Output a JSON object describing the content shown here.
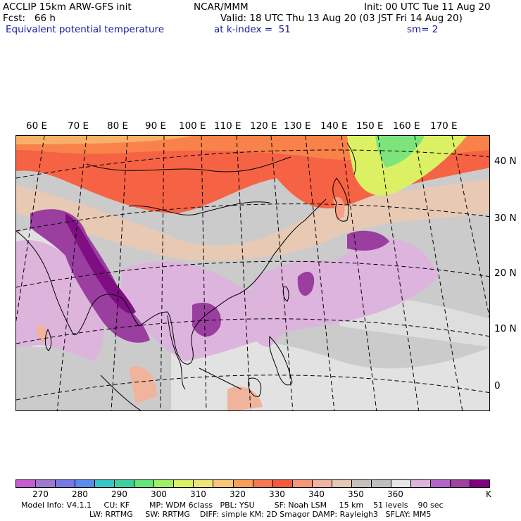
{
  "header": {
    "title_left": "ACCLIP 15km ARW-GFS init",
    "title_center": "NCAR/MMM",
    "init": "Init: 00 UTC Tue 11 Aug 20",
    "fcst": "Fcst:   66 h",
    "valid": "Valid: 18 UTC Thu 13 Aug 20 (03 JST Fri 14 Aug 20)",
    "field": "Equivalent potential temperature",
    "level": "at k-index =  51",
    "smooth": "sm= 2"
  },
  "map": {
    "lon_labels": [
      "60 E",
      "70 E",
      "80 E",
      "90 E",
      "100 E",
      "110 E",
      "120 E",
      "130 E",
      "140 E",
      "150 E",
      "160 E",
      "170 E"
    ],
    "lat_labels": [
      "40 N",
      "30 N",
      "20 N",
      "10 N",
      "0"
    ]
  },
  "colorbar": {
    "colors": [
      "#c85ad2",
      "#a078d2",
      "#7878e6",
      "#5a8cf0",
      "#32c8c8",
      "#3cd2a0",
      "#64e678",
      "#a0f064",
      "#dcf064",
      "#f0e678",
      "#f8c878",
      "#f8a05a",
      "#f87850",
      "#f8583c",
      "#f89678",
      "#f0b4a0",
      "#e6c8b4",
      "#c8bebe",
      "#bebebe",
      "#e6e6e6",
      "#dcb4dc",
      "#b464c8",
      "#a040a0",
      "#820082"
    ],
    "ticks": [
      "270",
      "280",
      "290",
      "300",
      "310",
      "320",
      "330",
      "340",
      "350",
      "360"
    ],
    "unit": "K"
  },
  "footer": {
    "line1": "Model Info: V4.1.1     CU: KF        MP: WDM 6class   PBL: YSU        SF: Noah LSM     15 km    51 levels    90 sec",
    "line2": "LW: RRTMG     SW: RRTMG    DIFF: simple KM: 2D Smagor DAMP: Rayleigh3   SFLAY: MM5"
  }
}
